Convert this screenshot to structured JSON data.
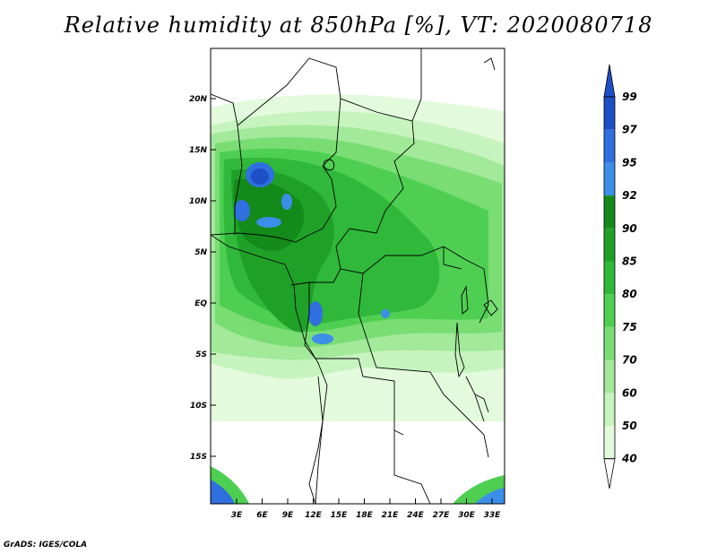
{
  "title": "Relative humidity at 850hPa [%], VT: 2020080718",
  "credit": "GrADS: IGES/COLA",
  "map": {
    "lat_labels": [
      "20N",
      "15N",
      "10N",
      "5N",
      "EQ",
      "5S",
      "10S",
      "15S"
    ],
    "lon_labels": [
      "3E",
      "6E",
      "9E",
      "12E",
      "15E",
      "18E",
      "21E",
      "24E",
      "27E",
      "30E",
      "33E"
    ],
    "lon_range": [
      0,
      35
    ],
    "lat_range": [
      -20,
      24
    ]
  },
  "colorbar": {
    "labels": [
      "99",
      "97",
      "95",
      "92",
      "90",
      "85",
      "80",
      "75",
      "70",
      "60",
      "50",
      "40"
    ],
    "colors": {
      "c99": "#1e4fc6",
      "c97": "#2f6fe0",
      "c95": "#3d8ee8",
      "c92": "#138a1a",
      "c90": "#1fa128",
      "c85": "#30b83a",
      "c80": "#4fcf52",
      "c75": "#79dd74",
      "c70": "#a2e99a",
      "c60": "#c6f3be",
      "c50": "#e3fadc",
      "c40": "#ffffff"
    }
  }
}
